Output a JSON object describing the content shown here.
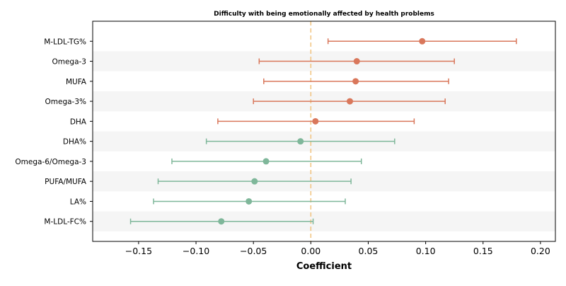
{
  "chart_data": {
    "type": "scatter",
    "subtype": "forest-plot",
    "title": "Difficulty with being emotionally affected by health problems",
    "xlabel": "Coefficient",
    "ylabel": "",
    "xlim": [
      -0.19,
      0.213
    ],
    "xticks": [
      -0.15,
      -0.1,
      -0.05,
      0.0,
      0.05,
      0.1,
      0.15,
      0.2
    ],
    "xtick_labels": [
      "−0.15",
      "−0.10",
      "−0.05",
      "0.00",
      "0.05",
      "0.10",
      "0.15",
      "0.20"
    ],
    "reference_line": 0,
    "alternating_row_shading": true,
    "grid": false,
    "colors": {
      "positive": "#d9775b",
      "negative": "#7fb79a",
      "reference_line": "#f1c27d",
      "row_shade": "#f5f5f5"
    },
    "rows": [
      {
        "label": "M-LDL-TG%",
        "estimate": 0.097,
        "ci_low": 0.015,
        "ci_high": 0.179
      },
      {
        "label": "Omega-3",
        "estimate": 0.04,
        "ci_low": -0.045,
        "ci_high": 0.125
      },
      {
        "label": "MUFA",
        "estimate": 0.039,
        "ci_low": -0.041,
        "ci_high": 0.12
      },
      {
        "label": "Omega-3%",
        "estimate": 0.034,
        "ci_low": -0.05,
        "ci_high": 0.117
      },
      {
        "label": "DHA",
        "estimate": 0.004,
        "ci_low": -0.081,
        "ci_high": 0.09
      },
      {
        "label": "DHA%",
        "estimate": -0.009,
        "ci_low": -0.091,
        "ci_high": 0.073
      },
      {
        "label": "Omega-6/Omega-3",
        "estimate": -0.039,
        "ci_low": -0.121,
        "ci_high": 0.044
      },
      {
        "label": "PUFA/MUFA",
        "estimate": -0.049,
        "ci_low": -0.133,
        "ci_high": 0.035
      },
      {
        "label": "LA%",
        "estimate": -0.054,
        "ci_low": -0.137,
        "ci_high": 0.03
      },
      {
        "label": "M-LDL-FC%",
        "estimate": -0.078,
        "ci_low": -0.157,
        "ci_high": 0.002
      }
    ]
  }
}
